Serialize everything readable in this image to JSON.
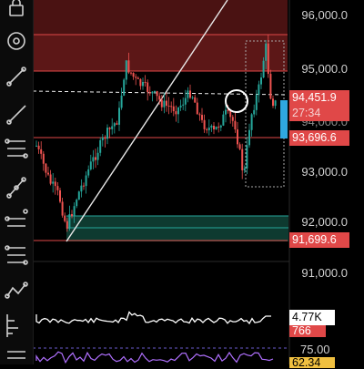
{
  "toolbar": {
    "tools": [
      {
        "name": "lock-icon"
      },
      {
        "name": "target-icon"
      },
      {
        "name": "trend-line-icon"
      },
      {
        "name": "ray-icon"
      },
      {
        "name": "channel-icon"
      },
      {
        "name": "pitchfork-icon"
      },
      {
        "name": "path-icon"
      },
      {
        "name": "horizontal-line-icon"
      },
      {
        "name": "fib-icon"
      },
      {
        "name": "pattern-icon"
      },
      {
        "name": "measure-icon"
      },
      {
        "name": "menu-icon"
      }
    ]
  },
  "price_axis": {
    "labels": [
      "96,000.0",
      "95,000.0",
      "94,000.0",
      "93,000.0",
      "92,000.0",
      "91,000.0"
    ]
  },
  "tags": {
    "current_price": "94,451.9",
    "countdown": "27:34",
    "level_high": "93,696.6",
    "level_low": "91,699.6",
    "volume_value": "4.77K",
    "volume_sub": "766",
    "osc_top": "75.00",
    "osc_value": "62.34"
  },
  "colors": {
    "up": "#26a69a",
    "down": "#ef5350",
    "resistance_zone": "#5a1818",
    "support_zone": "#0f3a2e",
    "line_red": "#e04848",
    "current_tag": "#e04848",
    "volume_tag_bg": "#ffffff",
    "osc_tag": "#f0c040"
  }
}
